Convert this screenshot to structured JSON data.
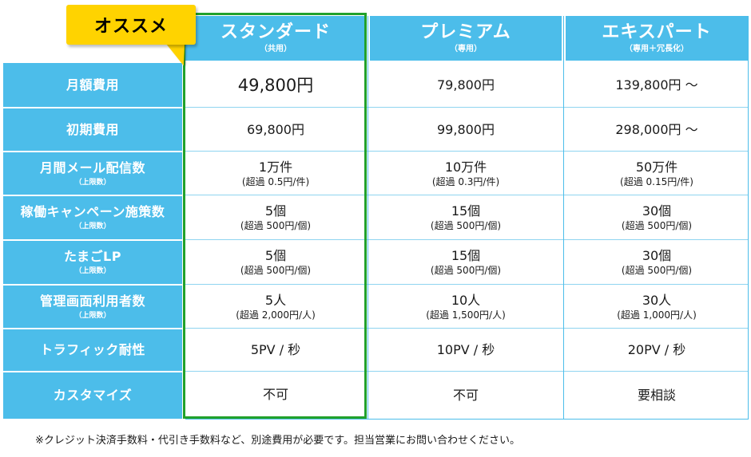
{
  "badge": {
    "label": "オススメ"
  },
  "plans": [
    {
      "name": "スタンダード",
      "sub": "（共用）"
    },
    {
      "name": "プレミアム",
      "sub": "（専用）"
    },
    {
      "name": "エキスパート",
      "sub": "（専用＋冗長化）"
    }
  ],
  "rows": [
    {
      "label": "月額費用",
      "sub": "",
      "cells": [
        {
          "main": "49,800円",
          "note": ""
        },
        {
          "main": "79,800円",
          "note": ""
        },
        {
          "main": "139,800円 ～",
          "note": ""
        }
      ]
    },
    {
      "label": "初期費用",
      "sub": "",
      "cells": [
        {
          "main": "69,800円",
          "note": ""
        },
        {
          "main": "99,800円",
          "note": ""
        },
        {
          "main": "298,000円 ～",
          "note": ""
        }
      ]
    },
    {
      "label": "月間メール配信数",
      "sub": "（上限数）",
      "cells": [
        {
          "main": "1万件",
          "note": "(超過 0.5円/件)"
        },
        {
          "main": "10万件",
          "note": "(超過 0.3円/件)"
        },
        {
          "main": "50万件",
          "note": "(超過 0.15円/件)"
        }
      ]
    },
    {
      "label": "稼働キャンペーン施策数",
      "sub": "（上限数）",
      "cells": [
        {
          "main": "5個",
          "note": "(超過 500円/個)"
        },
        {
          "main": "15個",
          "note": "(超過 500円/個)"
        },
        {
          "main": "30個",
          "note": "(超過 500円/個)"
        }
      ]
    },
    {
      "label": "たまごLP",
      "sub": "（上限数）",
      "cells": [
        {
          "main": "5個",
          "note": "(超過 500円/個)"
        },
        {
          "main": "15個",
          "note": "(超過 500円/個)"
        },
        {
          "main": "30個",
          "note": "(超過 500円/個)"
        }
      ]
    },
    {
      "label": "管理画面利用者数",
      "sub": "（上限数）",
      "cells": [
        {
          "main": "5人",
          "note": "(超過 2,000円/人)"
        },
        {
          "main": "10人",
          "note": "(超過 1,500円/人)"
        },
        {
          "main": "30人",
          "note": "(超過 1,000円/人)"
        }
      ]
    },
    {
      "label": "トラフィック耐性",
      "sub": "",
      "cells": [
        {
          "main": "5PV / 秒",
          "note": ""
        },
        {
          "main": "10PV / 秒",
          "note": ""
        },
        {
          "main": "20PV / 秒",
          "note": ""
        }
      ]
    },
    {
      "label": "カスタマイズ",
      "sub": "",
      "cells": [
        {
          "main": "不可",
          "note": ""
        },
        {
          "main": "不可",
          "note": ""
        },
        {
          "main": "要相談",
          "note": ""
        }
      ]
    }
  ],
  "footnote": "※クレジット決済手数料・代引き手数料など、別途費用が必要です。担当営業にお問い合わせください。"
}
